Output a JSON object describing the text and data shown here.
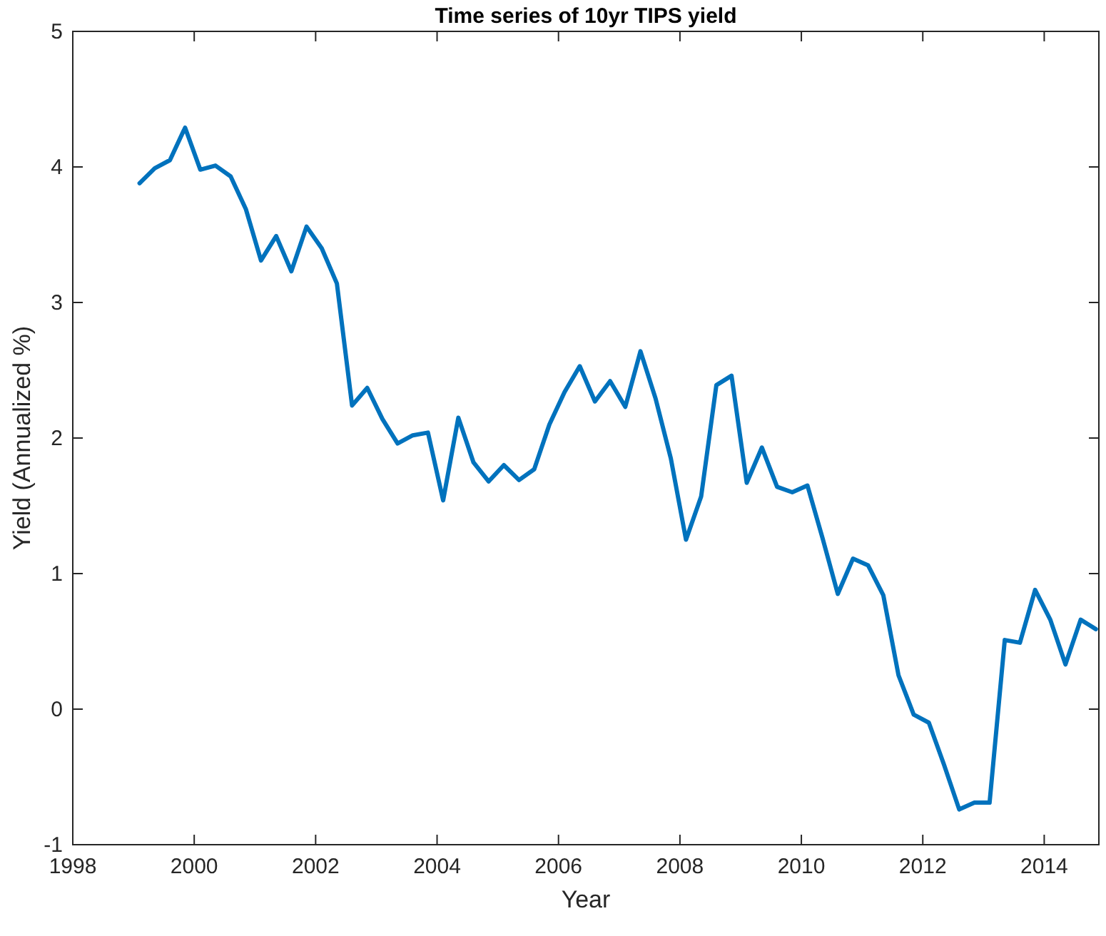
{
  "chart_data": {
    "type": "line",
    "title": "Time series of 10yr TIPS yield",
    "xlabel": "Year",
    "ylabel": "Yield (Annualized %)",
    "x": [
      1999.1,
      1999.35,
      1999.6,
      1999.85,
      2000.1,
      2000.35,
      2000.6,
      2000.85,
      2001.1,
      2001.35,
      2001.6,
      2001.85,
      2002.1,
      2002.35,
      2002.6,
      2002.85,
      2003.1,
      2003.35,
      2003.6,
      2003.85,
      2004.1,
      2004.35,
      2004.6,
      2004.85,
      2005.1,
      2005.35,
      2005.6,
      2005.85,
      2006.1,
      2006.35,
      2006.6,
      2006.85,
      2007.1,
      2007.35,
      2007.6,
      2007.85,
      2008.1,
      2008.35,
      2008.6,
      2008.85,
      2009.1,
      2009.35,
      2009.6,
      2009.85,
      2010.1,
      2010.35,
      2010.6,
      2010.85,
      2011.1,
      2011.35,
      2011.6,
      2011.85,
      2012.1,
      2012.35,
      2012.6,
      2012.85,
      2013.1,
      2013.35,
      2013.6,
      2013.85,
      2014.1,
      2014.35,
      2014.6,
      2014.85
    ],
    "series": [
      {
        "color": "#0072bd",
        "values": [
          3.88,
          3.99,
          4.05,
          4.29,
          3.98,
          4.01,
          3.93,
          3.69,
          3.31,
          3.49,
          3.23,
          3.56,
          3.4,
          3.14,
          2.24,
          2.37,
          2.14,
          1.96,
          2.02,
          2.04,
          1.54,
          2.15,
          1.82,
          1.68,
          1.8,
          1.69,
          1.77,
          2.1,
          2.34,
          2.53,
          2.27,
          2.42,
          2.23,
          2.64,
          2.29,
          1.85,
          1.25,
          1.57,
          2.39,
          2.46,
          1.67,
          1.93,
          1.64,
          1.6,
          1.65,
          1.26,
          0.85,
          1.11,
          1.06,
          0.84,
          0.25,
          -0.04,
          -0.1,
          -0.41,
          -0.74,
          -0.69,
          -0.69,
          0.51,
          0.49,
          0.88,
          0.66,
          0.33,
          0.66,
          0.59
        ]
      }
    ],
    "xlim": [
      1998,
      2014.9
    ],
    "xticks": [
      1998,
      2000,
      2002,
      2004,
      2006,
      2008,
      2010,
      2012,
      2014
    ],
    "ylim": [
      -1,
      5
    ],
    "yticks": [
      -1,
      0,
      1,
      2,
      3,
      4,
      5
    ],
    "grid": false,
    "marker": "none",
    "line_style": "solid"
  }
}
